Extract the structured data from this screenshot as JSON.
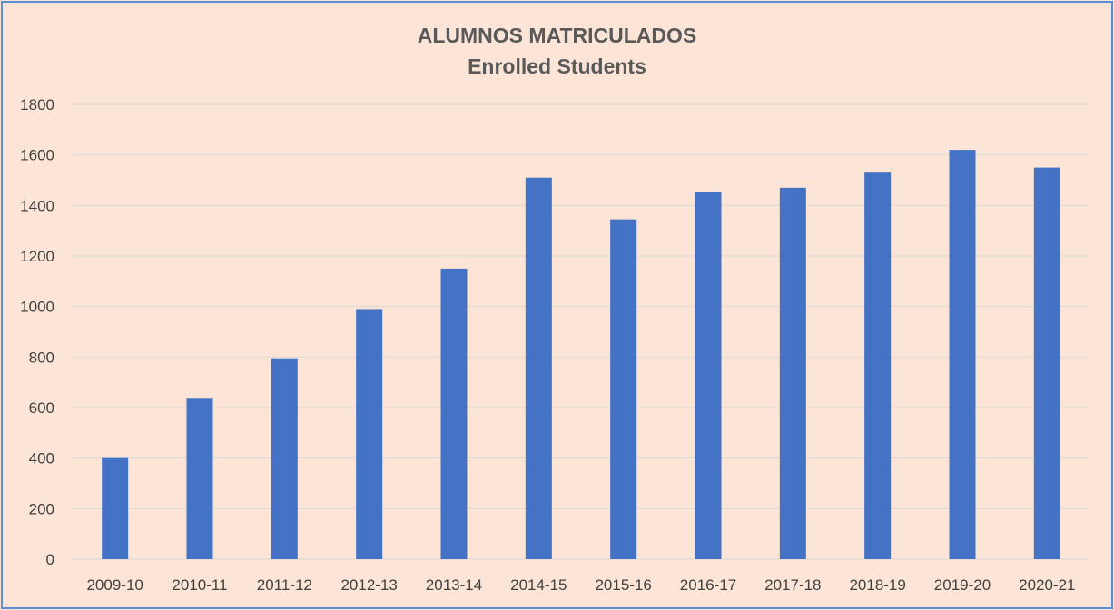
{
  "chart_data": {
    "type": "bar",
    "title": "ALUMNOS MATRICULADOS",
    "subtitle": "Enrolled Students",
    "categories": [
      "2009-10",
      "2010-11",
      "2011-12",
      "2012-13",
      "2013-14",
      "2014-15",
      "2015-16",
      "2016-17",
      "2017-18",
      "2018-19",
      "2019-20",
      "2020-21"
    ],
    "values": [
      400,
      635,
      795,
      990,
      1150,
      1510,
      1345,
      1455,
      1470,
      1530,
      1620,
      1550
    ],
    "ylim": [
      0,
      1800
    ],
    "yticks": [
      0,
      200,
      400,
      600,
      800,
      1000,
      1200,
      1400,
      1600,
      1800
    ],
    "grid": true,
    "legend": "none",
    "bar_color": "#4472c4",
    "grid_color": "#d9d9d9",
    "background_color": "#fce5d6",
    "border_color": "#5b8fd4"
  }
}
